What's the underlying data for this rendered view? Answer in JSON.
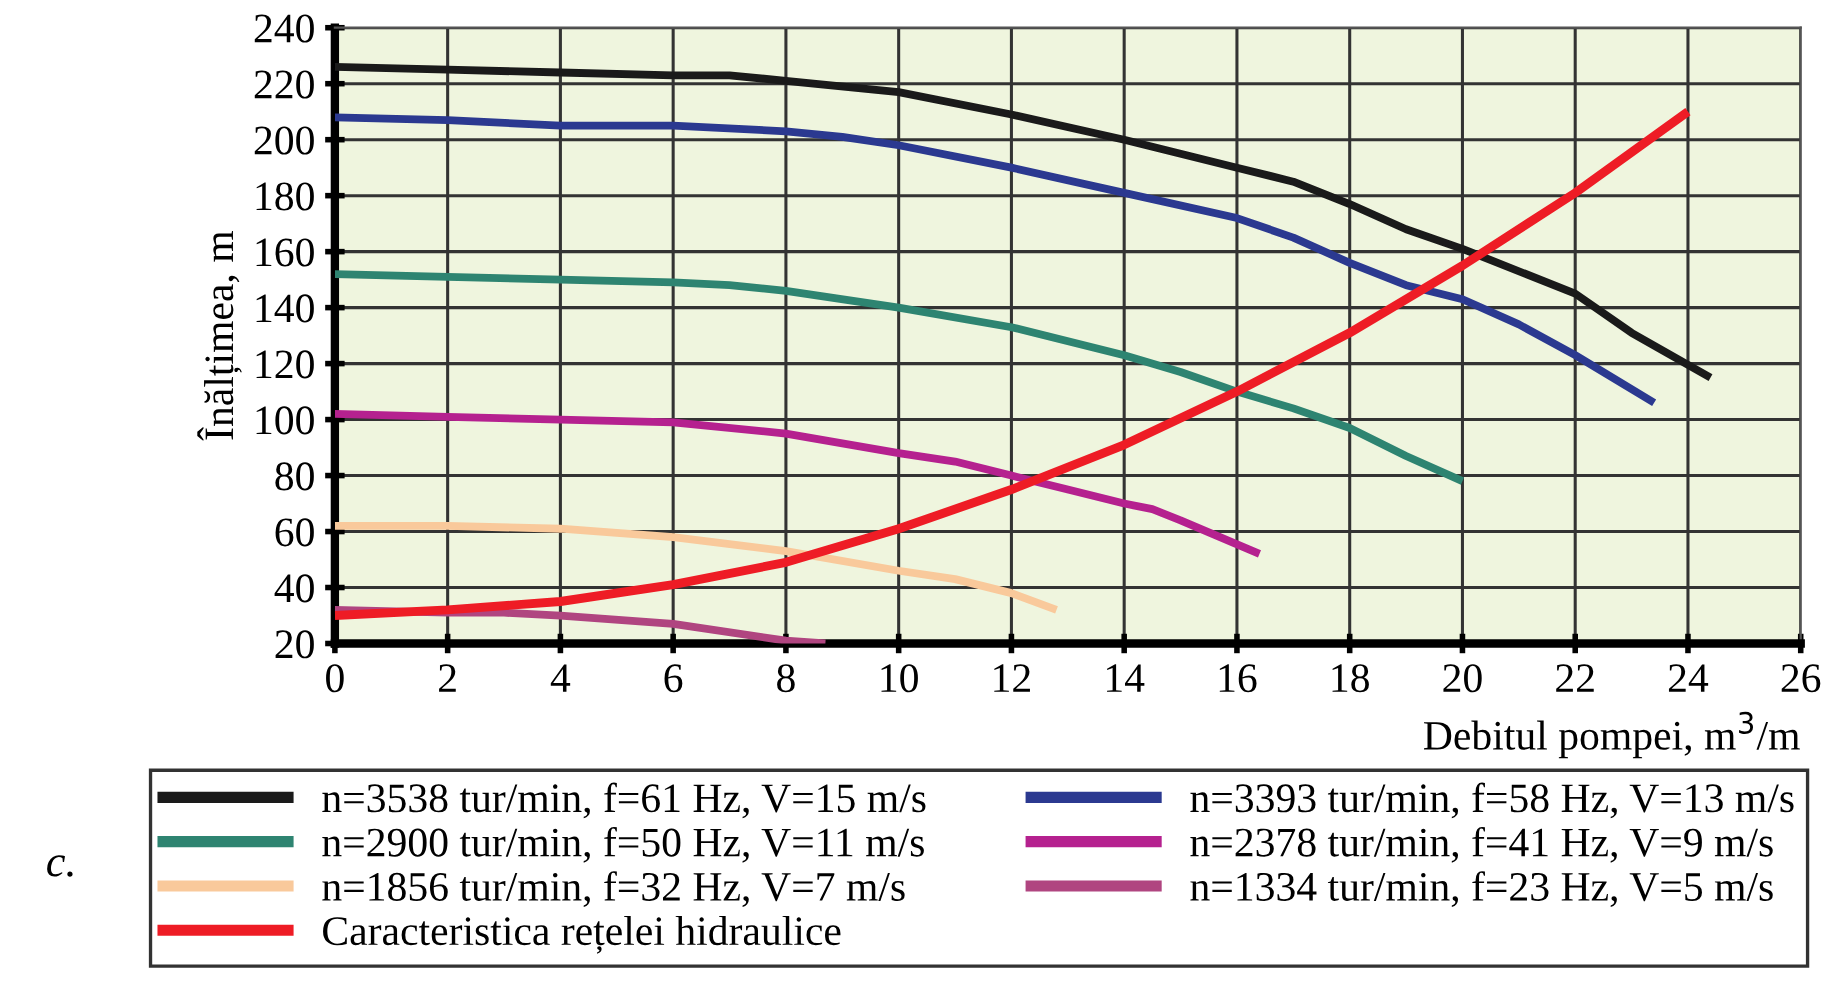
{
  "chart_data": {
    "type": "line",
    "xlabel": "Debitul pompei, m$^{3}$/m",
    "ylabel": "Înălțimea, m",
    "xlim": [
      0,
      26
    ],
    "xticks": [
      0,
      2,
      4,
      6,
      8,
      10,
      12,
      14,
      16,
      18,
      20,
      22,
      24,
      26
    ],
    "ylim": [
      20,
      240
    ],
    "yticks": [
      20,
      40,
      60,
      80,
      100,
      120,
      140,
      160,
      180,
      200,
      220,
      240
    ],
    "grid": true,
    "legend": "bottom",
    "marker": "none",
    "line_style": "solid",
    "annotations": [
      "c."
    ],
    "series": [
      {
        "name": "n=3538 tur/min, f=61 Hz, V=15 m/s",
        "color": "#1a1a1a",
        "x": [
          0,
          2,
          4,
          6,
          7,
          8,
          10,
          12,
          14,
          16,
          17,
          18,
          19,
          20,
          22,
          23,
          24.4
        ],
        "values": [
          226,
          225,
          224,
          223,
          223,
          221,
          217,
          209,
          200,
          190,
          185,
          177,
          168,
          161,
          145,
          131,
          115
        ]
      },
      {
        "name": "n=3393 tur/min, f=58 Hz, V=13 m/s",
        "color": "#2b3990",
        "x": [
          0,
          2,
          4,
          6,
          8,
          9,
          10,
          12,
          14,
          16,
          17,
          18,
          19,
          20,
          21,
          22,
          23.4
        ],
        "values": [
          208,
          207,
          205,
          205,
          203,
          201,
          198,
          190,
          181,
          172,
          165,
          156,
          148,
          143,
          134,
          123,
          106
        ]
      },
      {
        "name": "n=2900 tur/min, f=50 Hz, V=11 m/s",
        "color": "#2e8471",
        "x": [
          0,
          2,
          4,
          6,
          7,
          8,
          10,
          12,
          14,
          15,
          16,
          17,
          18,
          19,
          20
        ],
        "values": [
          152,
          151,
          150,
          149,
          148,
          146,
          140,
          133,
          123,
          117,
          110,
          104,
          97,
          87,
          78
        ]
      },
      {
        "name": "n=2378 tur/min, f=41 Hz, V=9 m/s",
        "color": "#b5218f",
        "x": [
          0,
          2,
          4,
          6,
          8,
          10,
          11,
          12,
          13,
          14,
          14.5,
          15,
          16.4
        ],
        "values": [
          102,
          101,
          100,
          99,
          95,
          88,
          85,
          80,
          75,
          70,
          68,
          64,
          52
        ]
      },
      {
        "name": "n=1856 tur/min, f=32 Hz, V=7 m/s",
        "color": "#f9c99b",
        "x": [
          0,
          2,
          4,
          6,
          8,
          10,
          11,
          12,
          12.8
        ],
        "values": [
          62,
          62,
          61,
          58,
          53,
          46,
          43,
          38,
          32
        ]
      },
      {
        "name": "n=1334 tur/min, f=23 Hz, V=5 m/s",
        "color": "#b04580",
        "x": [
          0,
          2,
          3,
          4,
          6,
          8,
          8.7
        ],
        "values": [
          32,
          31,
          31,
          30,
          27,
          21,
          20
        ]
      },
      {
        "name": "Caracteristica rețelei hidraulice",
        "color": "#ee1c25",
        "x": [
          0,
          2,
          4,
          6,
          8,
          10,
          12,
          14,
          16,
          18,
          20,
          22,
          24
        ],
        "values": [
          30,
          32,
          35,
          41,
          49,
          61,
          75,
          91,
          110,
          131,
          155,
          181,
          210
        ]
      }
    ]
  }
}
